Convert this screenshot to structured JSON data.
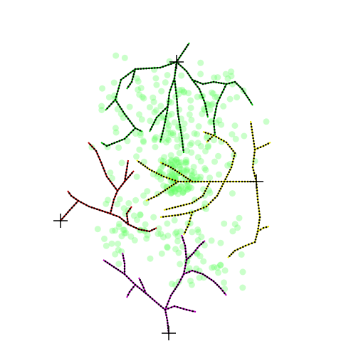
{
  "colors": {
    "background": "#ffffff",
    "dot_fill": "#66ff66",
    "dot_opacity": 0.35,
    "node_marker": "#000000",
    "root_marker": "#000000",
    "tree_top": "#00b400",
    "tree_center": "#e6e600",
    "tree_left": "#b40000",
    "tree_bottom": "#b400b4"
  },
  "root_markers": [
    {
      "name": "root-marker-top"
    },
    {
      "name": "root-marker-right"
    },
    {
      "name": "root-marker-left"
    },
    {
      "name": "root-marker-bottom"
    }
  ],
  "trees": [
    {
      "name": "tree-top-green"
    },
    {
      "name": "tree-center-yellow"
    },
    {
      "name": "tree-left-red"
    },
    {
      "name": "tree-bottom-magenta"
    }
  ]
}
